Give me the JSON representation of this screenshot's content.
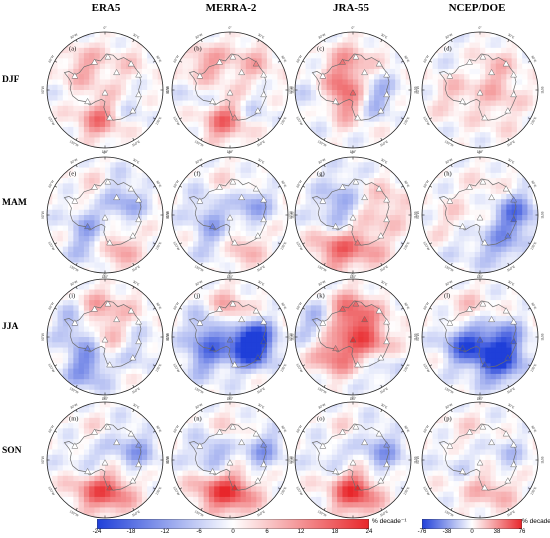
{
  "columns": [
    "ERA5",
    "MERRA-2",
    "JRA-55",
    "NCEP/DOE"
  ],
  "rows": [
    "DJF",
    "MAM",
    "JJA",
    "SON"
  ],
  "panel_labels": [
    "(a)",
    "(b)",
    "(c)",
    "(d)",
    "(e)",
    "(f)",
    "(g)",
    "(h)",
    "(i)",
    "(j)",
    "(k)",
    "(l)",
    "(m)",
    "(n)",
    "(o)",
    "(p)"
  ],
  "longitude_labels": [
    "0°",
    "30°E",
    "60°E",
    "90°E",
    "120°E",
    "150°E",
    "180°",
    "150°W",
    "120°W",
    "90°W",
    "60°W",
    "30°W"
  ],
  "colors": {
    "negative": "#1f3fd9",
    "neutral": "#ffffff",
    "positive": "#e8262a",
    "coast": "#6d6d6d"
  },
  "colorbars": [
    {
      "name": "reanalyses",
      "ticks": [
        "-24",
        "-18",
        "-12",
        "-6",
        "0",
        "6",
        "12",
        "18",
        "24"
      ],
      "unit": "% decade⁻¹"
    },
    {
      "name": "ncep",
      "ticks": [
        "-76",
        "-38",
        "0",
        "38",
        "76"
      ],
      "unit": "% decade⁻¹"
    }
  ],
  "patterns": [
    [
      [
        0.2,
        -0.1,
        0.3
      ],
      [
        -0.3,
        0.5,
        -0.4
      ],
      [
        0.45,
        0.3,
        0.2
      ],
      [
        -0.1,
        0.1,
        0.2
      ],
      [
        0.3,
        -0.35,
        0.1
      ],
      [
        0.1,
        0.35,
        -0.2
      ]
    ],
    [
      [
        0.3,
        -0.2,
        0.2
      ],
      [
        -0.4,
        0.4,
        -0.5
      ],
      [
        0.5,
        0.3,
        0.3
      ],
      [
        -0.2,
        0.0,
        0.2
      ],
      [
        0.35,
        -0.45,
        0.0
      ],
      [
        0.2,
        0.4,
        -0.3
      ]
    ],
    [
      [
        0.1,
        -0.2,
        0.1
      ],
      [
        -0.45,
        0.35,
        -0.75
      ],
      [
        0.55,
        0.2,
        -0.6
      ],
      [
        -0.2,
        -0.3,
        0.5
      ],
      [
        0.3,
        0.2,
        0.1
      ],
      [
        0.1,
        -0.2,
        -0.3
      ]
    ],
    [
      [
        0.1,
        -0.2,
        0.1
      ],
      [
        0.1,
        0.2,
        -0.1
      ],
      [
        0.0,
        0.0,
        0.0
      ],
      [
        0.2,
        0.1,
        0.05
      ],
      [
        -0.1,
        -0.2,
        0.0
      ],
      [
        0.2,
        0.0,
        0.1
      ]
    ],
    [
      [
        -0.3,
        -0.3,
        -0.5
      ],
      [
        0.4,
        -0.2,
        0.45
      ],
      [
        -0.35,
        0.0,
        0.3
      ],
      [
        -0.3,
        0.45,
        -0.2
      ],
      [
        0.3,
        0.1,
        0.2
      ],
      [
        -0.1,
        -0.3,
        -0.2
      ]
    ],
    [
      [
        -0.4,
        -0.3,
        -0.4
      ],
      [
        0.45,
        -0.3,
        0.35
      ],
      [
        -0.4,
        0.2,
        0.2
      ],
      [
        -0.35,
        0.3,
        -0.3
      ],
      [
        0.2,
        0.2,
        0.35
      ],
      [
        0.1,
        -0.2,
        -0.2
      ]
    ],
    [
      [
        0.2,
        0.4,
        -0.3
      ],
      [
        0.3,
        0.0,
        0.4
      ],
      [
        0.45,
        -0.2,
        0.5
      ],
      [
        -0.3,
        0.4,
        -0.1
      ],
      [
        -0.2,
        0.2,
        -0.3
      ],
      [
        0.1,
        -0.3,
        0.0
      ]
    ],
    [
      [
        -0.5,
        0.35,
        -0.05
      ],
      [
        -0.3,
        0.35,
        0.4
      ],
      [
        -0.2,
        -0.2,
        0.1
      ],
      [
        0.2,
        0.1,
        0.5
      ],
      [
        0.0,
        0.0,
        0.0
      ],
      [
        0.1,
        0.0,
        -0.1
      ]
    ],
    [
      [
        0.45,
        -0.4,
        0.4
      ],
      [
        -0.5,
        0.5,
        -0.5
      ],
      [
        -0.45,
        -0.2,
        0.3
      ],
      [
        -0.4,
        0.0,
        -0.55
      ],
      [
        0.4,
        0.1,
        0.0
      ],
      [
        0.1,
        0.35,
        -0.3
      ]
    ],
    [
      [
        -0.55,
        -0.35,
        0.1
      ],
      [
        -0.6,
        0.4,
        -0.6
      ],
      [
        -0.4,
        -0.5,
        -0.2
      ],
      [
        -0.5,
        0.4,
        -0.5
      ],
      [
        0.4,
        0.3,
        0.0
      ],
      [
        0.2,
        -0.3,
        0.4
      ]
    ],
    [
      [
        0.5,
        -0.3,
        0.4
      ],
      [
        -0.3,
        0.6,
        0.2
      ],
      [
        0.5,
        -0.2,
        -0.3
      ],
      [
        -0.3,
        -0.4,
        -0.6
      ],
      [
        0.3,
        0.2,
        0.0
      ],
      [
        0.35,
        -0.3,
        0.1
      ]
    ],
    [
      [
        -0.45,
        -0.1,
        0.2
      ],
      [
        -0.6,
        0.25,
        0.15
      ],
      [
        -0.25,
        0.1,
        -0.6
      ],
      [
        -0.4,
        0.45,
        0.25
      ],
      [
        0.2,
        0.0,
        0.0
      ],
      [
        0.0,
        -0.1,
        0.1
      ]
    ],
    [
      [
        -0.3,
        0.2,
        -0.3
      ],
      [
        0.45,
        -0.2,
        0.4
      ],
      [
        0.35,
        -0.1,
        0.3
      ],
      [
        -0.3,
        0.45,
        -0.1
      ],
      [
        0.2,
        0.1,
        0.2
      ],
      [
        -0.1,
        -0.2,
        0.1
      ]
    ],
    [
      [
        -0.35,
        0.2,
        -0.45
      ],
      [
        0.5,
        -0.3,
        0.45
      ],
      [
        0.4,
        -0.2,
        0.3
      ],
      [
        -0.4,
        0.4,
        -0.2
      ],
      [
        0.1,
        0.3,
        0.1
      ],
      [
        0.1,
        -0.2,
        -0.1
      ]
    ],
    [
      [
        -0.3,
        0.2,
        -0.2
      ],
      [
        0.45,
        -0.3,
        0.5
      ],
      [
        0.3,
        0.3,
        0.2
      ],
      [
        -0.3,
        0.4,
        -0.2
      ],
      [
        0.2,
        0.1,
        0.2
      ],
      [
        -0.1,
        0.2,
        0.1
      ]
    ],
    [
      [
        -0.2,
        0.0,
        -0.1
      ],
      [
        0.25,
        0.1,
        0.3
      ],
      [
        0.1,
        0.2,
        0.1
      ],
      [
        -0.2,
        0.3,
        0.0
      ],
      [
        0.15,
        -0.1,
        0.1
      ],
      [
        0.0,
        0.1,
        -0.1
      ]
    ]
  ]
}
